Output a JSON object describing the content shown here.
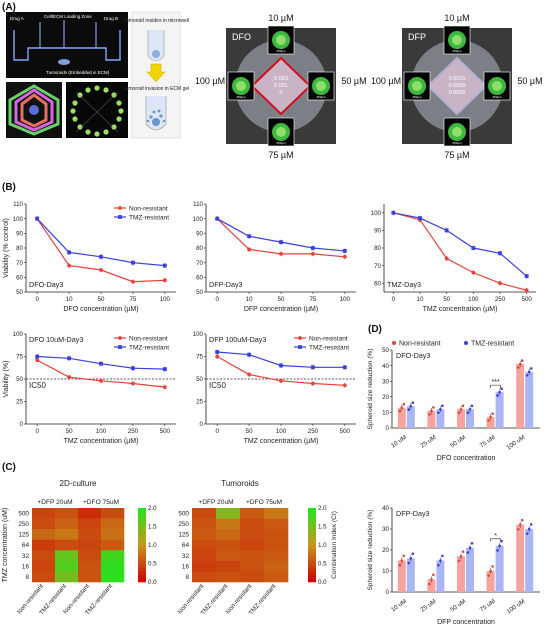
{
  "panels": {
    "A": "(A)",
    "B": "(B)",
    "C": "(C)",
    "D": "(D)"
  },
  "panelA": {
    "schematic_labels": [
      "Drug A",
      "Cell/ECM Loading Zone",
      "Drug B",
      "Tumoroids (Embedded in ECM)"
    ],
    "microwell_text": "Tumoroid resides in microwell",
    "invasion_text": "Tumoroid invasion in ECM gel",
    "plate1": {
      "drug": "DFO",
      "top": "10 µM",
      "left": "100 µM",
      "right": "50 µM",
      "bottom": "75 µM",
      "center_values": [
        "0.003",
        "0.001",
        "0"
      ],
      "scale": "250µm"
    },
    "plate2": {
      "drug": "DFP",
      "top": "10 µM",
      "left": "100 µM",
      "right": "50 µM",
      "bottom": "75 µM",
      "center_values": [
        "0.0015",
        "0.0005",
        "0.0005"
      ],
      "scale": "250µm"
    }
  },
  "colors": {
    "non_resistant": "#e8403a",
    "tmz_resistant": "#3b3fe0",
    "bar_red": "#f4a49c",
    "bar_blue": "#a9b6f2"
  },
  "chart_data": [
    {
      "type": "line",
      "id": "dfo_day3",
      "annotation": "DFO-Day3",
      "xlabel": "DFO concentration (µM)",
      "ylabel": "Viability (% control)",
      "x": [
        "0",
        "10",
        "50",
        "75",
        "100"
      ],
      "ylim": [
        50,
        110
      ],
      "yticks": [
        50,
        60,
        70,
        80,
        90,
        100,
        110
      ],
      "series": [
        {
          "name": "Non-resistant",
          "values": [
            100,
            68,
            65,
            57,
            58
          ]
        },
        {
          "name": "TMZ-resistant",
          "values": [
            100,
            77,
            74,
            70,
            68
          ]
        }
      ],
      "legend": "top-right"
    },
    {
      "type": "line",
      "id": "dfp_day3",
      "annotation": "DFP-Day3",
      "xlabel": "DFP concentration (µM)",
      "ylabel": "",
      "x": [
        "0",
        "10",
        "50",
        "75",
        "100"
      ],
      "ylim": [
        50,
        110
      ],
      "yticks": [
        50,
        60,
        70,
        80,
        90,
        100,
        110
      ],
      "series": [
        {
          "name": "Non-resistant",
          "values": [
            100,
            79,
            76,
            76,
            74
          ]
        },
        {
          "name": "TMZ-resistant",
          "values": [
            100,
            88,
            84,
            80,
            78
          ]
        }
      ],
      "legend": "none"
    },
    {
      "type": "line",
      "id": "tmz_day3",
      "annotation": "TMZ-Day3",
      "xlabel": "TMZ concentration (µM)",
      "ylabel": "",
      "x": [
        "0",
        "10",
        "50",
        "100",
        "250",
        "500"
      ],
      "ylim": [
        55,
        105
      ],
      "yticks": [
        60,
        70,
        80,
        90,
        100
      ],
      "series": [
        {
          "name": "Non-resistant",
          "values": [
            100,
            96,
            74,
            66,
            60,
            56
          ]
        },
        {
          "name": "TMZ-resistant",
          "values": [
            100,
            97,
            90,
            80,
            77,
            64
          ]
        }
      ],
      "legend": "none"
    },
    {
      "type": "line",
      "id": "dfo10_day3",
      "annotation": "DFO 10uM-Day3",
      "xlabel": "TMZ concentration (µM)",
      "ylabel": "Viability (%)",
      "x": [
        "0",
        "50",
        "100",
        "250",
        "500"
      ],
      "ylim": [
        0,
        100
      ],
      "yticks": [
        0,
        25,
        50,
        75,
        100
      ],
      "series": [
        {
          "name": "Non-resistant",
          "values": [
            71,
            52,
            48,
            45,
            41
          ]
        },
        {
          "name": "TMZ-resistant",
          "values": [
            75,
            73,
            67,
            62,
            61
          ]
        }
      ],
      "reference_line": {
        "y": 50,
        "label": "IC50"
      },
      "legend": "top-right"
    },
    {
      "type": "line",
      "id": "dfp100_day3",
      "annotation": "DFP 100uM-Day3",
      "xlabel": "TMZ concentration (µM)",
      "ylabel": "",
      "x": [
        "0",
        "50",
        "100",
        "250",
        "500"
      ],
      "ylim": [
        0,
        100
      ],
      "yticks": [
        0,
        25,
        50,
        75,
        100
      ],
      "series": [
        {
          "name": "Non-resistant",
          "values": [
            75,
            55,
            48,
            45,
            43
          ]
        },
        {
          "name": "TMZ-resistant",
          "values": [
            80,
            77,
            65,
            63,
            63
          ]
        }
      ],
      "reference_line": {
        "y": 50,
        "label": "IC50"
      },
      "legend": "top-right"
    },
    {
      "type": "bar",
      "id": "dfo_spheroid",
      "annotation": "DFO-Day3",
      "xlabel": "DFO concentration",
      "ylabel": "Spheroid size reduction (%)",
      "categories": [
        "10 uM",
        "25 uM",
        "50 uM",
        "75 uM",
        "100 uM"
      ],
      "ylim": [
        0,
        50
      ],
      "yticks": [
        0,
        10,
        20,
        30,
        40,
        50
      ],
      "series": [
        {
          "name": "Non-resistant",
          "values": [
            13,
            11,
            12,
            7,
            41
          ]
        },
        {
          "name": "TMZ-resistant",
          "values": [
            14,
            12,
            12,
            23,
            36
          ]
        }
      ],
      "significance": [
        {
          "category": "75 uM",
          "label": "***"
        }
      ],
      "legend": "top"
    },
    {
      "type": "bar",
      "id": "dfp_spheroid",
      "annotation": "DFP-Day3",
      "xlabel": "DFP concentration",
      "ylabel": "Spheroid size reduction (%)",
      "categories": [
        "10 uM",
        "25 uM",
        "50 uM",
        "75 uM",
        "100 uM"
      ],
      "ylim": [
        0,
        40
      ],
      "yticks": [
        0,
        10,
        20,
        30,
        40
      ],
      "series": [
        {
          "name": "Non-resistant",
          "values": [
            15,
            6,
            17,
            10,
            32
          ]
        },
        {
          "name": "TMZ-resistant",
          "values": [
            16,
            15,
            21,
            22,
            30
          ]
        }
      ],
      "significance": [
        {
          "category": "75 uM",
          "label": "*"
        }
      ],
      "legend": "none"
    },
    {
      "type": "heatmap",
      "id": "ci_2d",
      "title": "2D-culture",
      "groups": [
        "+DFP 20uM",
        "+DFO 75uM"
      ],
      "columns": [
        "Non-resistant",
        "TMZ-resistant",
        "Non-resistant",
        "TMZ-resistant"
      ],
      "rows": [
        "500",
        "250",
        "125",
        "64",
        "32",
        "16",
        "8"
      ],
      "ylabel": "TMZ concentration (uM)",
      "values": [
        [
          0.45,
          0.55,
          0.3,
          0.5
        ],
        [
          0.5,
          0.65,
          0.45,
          0.7
        ],
        [
          0.7,
          0.8,
          0.5,
          0.75
        ],
        [
          0.4,
          0.5,
          0.45,
          0.6
        ],
        [
          0.5,
          1.6,
          0.5,
          1.8
        ],
        [
          0.45,
          1.7,
          0.55,
          1.9
        ],
        [
          0.5,
          1.5,
          0.55,
          1.9
        ]
      ],
      "scale": [
        0.0,
        2.0
      ],
      "scale_ticks": [
        "0.0",
        "0.5",
        "1.0",
        "1.5",
        "2.0"
      ]
    },
    {
      "type": "heatmap",
      "id": "ci_tumoroids",
      "title": "Tumoroids",
      "groups": [
        "+DFP 20uM",
        "+DFO 75uM"
      ],
      "columns": [
        "Non-resistant",
        "TMZ-resistant",
        "Non-resistant",
        "TMZ-resistant"
      ],
      "rows": [
        "500",
        "250",
        "125",
        "64",
        "32",
        "16",
        "8"
      ],
      "clabel": "Combination Index (CI)",
      "values": [
        [
          0.5,
          1.4,
          0.6,
          0.8
        ],
        [
          0.55,
          0.8,
          0.5,
          0.6
        ],
        [
          0.6,
          0.7,
          0.5,
          0.55
        ],
        [
          0.5,
          0.55,
          0.45,
          0.55
        ],
        [
          0.45,
          0.6,
          0.55,
          0.6
        ],
        [
          0.4,
          0.45,
          0.55,
          0.65
        ],
        [
          0.5,
          0.55,
          0.5,
          0.6
        ]
      ],
      "scale": [
        0.0,
        2.0
      ],
      "scale_ticks": [
        "0.0",
        "0.5",
        "1.0",
        "1.5",
        "2.0"
      ]
    }
  ]
}
